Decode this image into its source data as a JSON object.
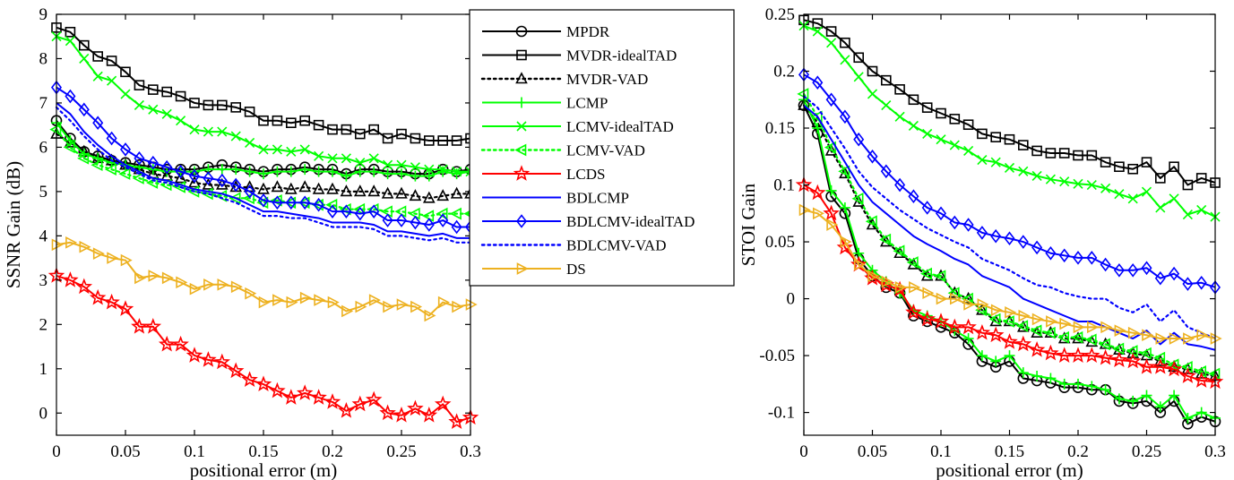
{
  "chart_data": [
    {
      "type": "line",
      "xlabel": "positional error (m)",
      "ylabel": "SSNR Gain (dB)",
      "xlim": [
        0,
        0.3
      ],
      "ylim": [
        -0.5,
        9
      ],
      "xticks": [
        0,
        0.05,
        0.1,
        0.15,
        0.2,
        0.25,
        0.3
      ],
      "xtick_labels": [
        "0",
        "0.05",
        "0.1",
        "0.15",
        "0.2",
        "0.25",
        "0.3"
      ],
      "yticks": [
        0,
        1,
        2,
        3,
        4,
        5,
        6,
        7,
        8,
        9
      ],
      "ytick_labels": [
        "0",
        "1",
        "2",
        "3",
        "4",
        "5",
        "6",
        "7",
        "8",
        "9"
      ],
      "x": [
        0,
        0.01,
        0.02,
        0.03,
        0.04,
        0.05,
        0.06,
        0.07,
        0.08,
        0.09,
        0.1,
        0.11,
        0.12,
        0.13,
        0.14,
        0.15,
        0.16,
        0.17,
        0.18,
        0.19,
        0.2,
        0.21,
        0.22,
        0.23,
        0.24,
        0.25,
        0.26,
        0.27,
        0.28,
        0.29,
        0.3
      ],
      "series": [
        {
          "name": "MPDR",
          "values": [
            6.6,
            6.2,
            5.9,
            5.8,
            5.7,
            5.65,
            5.6,
            5.55,
            5.5,
            5.5,
            5.5,
            5.55,
            5.6,
            5.55,
            5.5,
            5.45,
            5.5,
            5.5,
            5.55,
            5.5,
            5.5,
            5.4,
            5.5,
            5.5,
            5.45,
            5.45,
            5.4,
            5.4,
            5.5,
            5.45,
            5.5
          ]
        },
        {
          "name": "MVDR-idealTAD",
          "values": [
            8.7,
            8.6,
            8.3,
            8.05,
            7.95,
            7.7,
            7.4,
            7.3,
            7.25,
            7.15,
            7.0,
            6.95,
            6.95,
            6.9,
            6.8,
            6.6,
            6.6,
            6.55,
            6.6,
            6.5,
            6.4,
            6.4,
            6.3,
            6.4,
            6.2,
            6.3,
            6.2,
            6.15,
            6.15,
            6.15,
            6.2
          ]
        },
        {
          "name": "MVDR-VAD",
          "values": [
            6.3,
            6.1,
            5.9,
            5.75,
            5.7,
            5.6,
            5.5,
            5.4,
            5.35,
            5.3,
            5.2,
            5.15,
            5.15,
            5.1,
            5.1,
            5.05,
            5.1,
            5.05,
            5.1,
            5.05,
            5.05,
            5.0,
            5.0,
            5.0,
            4.95,
            4.95,
            4.9,
            4.85,
            4.9,
            4.95,
            4.95
          ]
        },
        {
          "name": "LCMP",
          "values": [
            6.55,
            6.15,
            5.85,
            5.75,
            5.65,
            5.6,
            5.55,
            5.5,
            5.45,
            5.45,
            5.45,
            5.5,
            5.5,
            5.5,
            5.45,
            5.4,
            5.45,
            5.45,
            5.5,
            5.45,
            5.45,
            5.35,
            5.45,
            5.45,
            5.4,
            5.4,
            5.35,
            5.35,
            5.45,
            5.4,
            5.45
          ]
        },
        {
          "name": "LCMV-idealTAD",
          "values": [
            8.5,
            8.4,
            8.0,
            7.6,
            7.5,
            7.2,
            6.95,
            6.85,
            6.75,
            6.6,
            6.4,
            6.35,
            6.35,
            6.25,
            6.1,
            5.95,
            5.95,
            5.9,
            5.95,
            5.8,
            5.75,
            5.75,
            5.65,
            5.75,
            5.6,
            5.6,
            5.55,
            5.5,
            5.5,
            5.45,
            5.45
          ]
        },
        {
          "name": "LCMV-VAD",
          "values": [
            6.4,
            6.0,
            5.75,
            5.6,
            5.5,
            5.4,
            5.3,
            5.2,
            5.15,
            5.1,
            5.0,
            4.95,
            4.9,
            4.85,
            4.85,
            4.75,
            4.8,
            4.75,
            4.75,
            4.7,
            4.7,
            4.6,
            4.6,
            4.6,
            4.55,
            4.55,
            4.5,
            4.45,
            4.5,
            4.5,
            4.5
          ]
        },
        {
          "name": "LCDS",
          "values": [
            3.1,
            3.0,
            2.85,
            2.6,
            2.5,
            2.35,
            1.95,
            1.95,
            1.55,
            1.55,
            1.3,
            1.2,
            1.15,
            0.95,
            0.75,
            0.65,
            0.5,
            0.35,
            0.45,
            0.35,
            0.25,
            0.05,
            0.2,
            0.3,
            0.0,
            -0.05,
            0.1,
            -0.05,
            0.2,
            -0.2,
            -0.1
          ]
        },
        {
          "name": "BDLCMP",
          "values": [
            7.0,
            6.75,
            6.35,
            6.05,
            5.8,
            5.6,
            5.45,
            5.3,
            5.25,
            5.15,
            5.05,
            5.0,
            4.95,
            4.85,
            4.7,
            4.55,
            4.55,
            4.5,
            4.45,
            4.4,
            4.3,
            4.3,
            4.3,
            4.25,
            4.1,
            4.1,
            4.05,
            4.0,
            4.05,
            3.95,
            3.95
          ]
        },
        {
          "name": "BDLCMV-idealTAD",
          "values": [
            7.35,
            7.15,
            6.85,
            6.55,
            6.2,
            5.95,
            5.75,
            5.65,
            5.55,
            5.45,
            5.35,
            5.3,
            5.25,
            5.15,
            5.0,
            4.8,
            4.75,
            4.75,
            4.75,
            4.7,
            4.55,
            4.55,
            4.5,
            4.55,
            4.35,
            4.35,
            4.3,
            4.25,
            4.35,
            4.2,
            4.2
          ]
        },
        {
          "name": "BDLCMV-VAD",
          "values": [
            6.9,
            6.6,
            6.25,
            5.95,
            5.7,
            5.55,
            5.4,
            5.25,
            5.2,
            5.1,
            5.0,
            4.95,
            4.85,
            4.75,
            4.6,
            4.45,
            4.45,
            4.4,
            4.4,
            4.3,
            4.2,
            4.2,
            4.2,
            4.15,
            4.0,
            4.0,
            3.95,
            3.9,
            3.95,
            3.85,
            3.85
          ]
        },
        {
          "name": "DS",
          "values": [
            3.8,
            3.85,
            3.75,
            3.6,
            3.5,
            3.45,
            3.05,
            3.1,
            3.05,
            2.95,
            2.8,
            2.9,
            2.9,
            2.85,
            2.7,
            2.5,
            2.55,
            2.5,
            2.6,
            2.55,
            2.5,
            2.3,
            2.4,
            2.55,
            2.4,
            2.45,
            2.4,
            2.2,
            2.5,
            2.4,
            2.45
          ]
        }
      ]
    },
    {
      "type": "line",
      "xlabel": "positional error (m)",
      "ylabel": "STOI Gain",
      "xlim": [
        0,
        0.3
      ],
      "ylim": [
        -0.12,
        0.25
      ],
      "xticks": [
        0,
        0.05,
        0.1,
        0.15,
        0.2,
        0.25,
        0.3
      ],
      "xtick_labels": [
        "0",
        "0.05",
        "0.1",
        "0.15",
        "0.2",
        "0.25",
        "0.3"
      ],
      "yticks": [
        -0.1,
        -0.05,
        0,
        0.05,
        0.1,
        0.15,
        0.2,
        0.25
      ],
      "ytick_labels": [
        "-0.1",
        "-0.05",
        "0",
        "0.05",
        "0.1",
        "0.15",
        "0.2",
        "0.25"
      ],
      "x": [
        0,
        0.01,
        0.02,
        0.03,
        0.04,
        0.05,
        0.06,
        0.07,
        0.08,
        0.09,
        0.1,
        0.11,
        0.12,
        0.13,
        0.14,
        0.15,
        0.16,
        0.17,
        0.18,
        0.19,
        0.2,
        0.21,
        0.22,
        0.23,
        0.24,
        0.25,
        0.26,
        0.27,
        0.28,
        0.29,
        0.3
      ],
      "series": [
        {
          "name": "MPDR",
          "values": [
            0.17,
            0.145,
            0.09,
            0.075,
            0.035,
            0.02,
            0.01,
            0.005,
            -0.015,
            -0.02,
            -0.025,
            -0.03,
            -0.04,
            -0.055,
            -0.06,
            -0.055,
            -0.07,
            -0.072,
            -0.074,
            -0.078,
            -0.078,
            -0.08,
            -0.08,
            -0.09,
            -0.092,
            -0.09,
            -0.1,
            -0.09,
            -0.11,
            -0.104,
            -0.108
          ]
        },
        {
          "name": "MVDR-idealTAD",
          "values": [
            0.245,
            0.242,
            0.235,
            0.225,
            0.212,
            0.2,
            0.192,
            0.184,
            0.175,
            0.168,
            0.163,
            0.158,
            0.153,
            0.145,
            0.142,
            0.14,
            0.135,
            0.13,
            0.128,
            0.128,
            0.126,
            0.126,
            0.12,
            0.116,
            0.114,
            0.12,
            0.106,
            0.116,
            0.1,
            0.106,
            0.102
          ]
        },
        {
          "name": "MVDR-VAD",
          "values": [
            0.17,
            0.155,
            0.13,
            0.11,
            0.085,
            0.065,
            0.05,
            0.04,
            0.03,
            0.02,
            0.02,
            0.005,
            0.0,
            -0.01,
            -0.02,
            -0.02,
            -0.025,
            -0.03,
            -0.03,
            -0.035,
            -0.035,
            -0.038,
            -0.04,
            -0.045,
            -0.048,
            -0.05,
            -0.055,
            -0.06,
            -0.062,
            -0.066,
            -0.068
          ]
        },
        {
          "name": "LCMP",
          "values": [
            0.175,
            0.15,
            0.095,
            0.08,
            0.04,
            0.025,
            0.015,
            0.005,
            -0.01,
            -0.015,
            -0.02,
            -0.028,
            -0.035,
            -0.05,
            -0.055,
            -0.05,
            -0.065,
            -0.068,
            -0.07,
            -0.075,
            -0.075,
            -0.077,
            -0.08,
            -0.088,
            -0.09,
            -0.085,
            -0.095,
            -0.085,
            -0.105,
            -0.1,
            -0.105
          ]
        },
        {
          "name": "LCMV-idealTAD",
          "values": [
            0.24,
            0.235,
            0.225,
            0.21,
            0.195,
            0.18,
            0.17,
            0.16,
            0.152,
            0.145,
            0.14,
            0.135,
            0.13,
            0.122,
            0.12,
            0.115,
            0.112,
            0.108,
            0.105,
            0.103,
            0.101,
            0.1,
            0.097,
            0.092,
            0.088,
            0.094,
            0.08,
            0.088,
            0.074,
            0.078,
            0.072
          ]
        },
        {
          "name": "LCMV-VAD",
          "values": [
            0.18,
            0.16,
            0.133,
            0.112,
            0.088,
            0.068,
            0.052,
            0.042,
            0.032,
            0.022,
            0.02,
            0.005,
            0.0,
            -0.01,
            -0.018,
            -0.02,
            -0.024,
            -0.028,
            -0.03,
            -0.034,
            -0.034,
            -0.036,
            -0.04,
            -0.044,
            -0.046,
            -0.048,
            -0.052,
            -0.058,
            -0.06,
            -0.064,
            -0.066
          ]
        },
        {
          "name": "LCDS",
          "values": [
            0.1,
            0.093,
            0.075,
            0.045,
            0.03,
            0.018,
            0.012,
            0.008,
            -0.012,
            -0.018,
            -0.02,
            -0.025,
            -0.025,
            -0.03,
            -0.032,
            -0.038,
            -0.04,
            -0.045,
            -0.048,
            -0.05,
            -0.05,
            -0.05,
            -0.052,
            -0.054,
            -0.055,
            -0.06,
            -0.06,
            -0.062,
            -0.068,
            -0.072,
            -0.073
          ]
        },
        {
          "name": "BDLCMP",
          "values": [
            0.17,
            0.16,
            0.14,
            0.12,
            0.1,
            0.085,
            0.075,
            0.065,
            0.055,
            0.048,
            0.042,
            0.035,
            0.03,
            0.02,
            0.015,
            0.01,
            0.0,
            -0.005,
            -0.01,
            -0.015,
            -0.02,
            -0.02,
            -0.025,
            -0.03,
            -0.035,
            -0.028,
            -0.04,
            -0.03,
            -0.04,
            -0.042,
            -0.045
          ]
        },
        {
          "name": "BDLCMV-idealTAD",
          "values": [
            0.197,
            0.19,
            0.175,
            0.16,
            0.14,
            0.125,
            0.112,
            0.1,
            0.09,
            0.08,
            0.075,
            0.067,
            0.065,
            0.058,
            0.055,
            0.053,
            0.05,
            0.045,
            0.04,
            0.038,
            0.036,
            0.036,
            0.03,
            0.025,
            0.025,
            0.027,
            0.018,
            0.022,
            0.013,
            0.014,
            0.01
          ]
        },
        {
          "name": "BDLCMV-VAD",
          "values": [
            0.178,
            0.168,
            0.15,
            0.132,
            0.112,
            0.098,
            0.088,
            0.078,
            0.07,
            0.062,
            0.056,
            0.05,
            0.045,
            0.035,
            0.03,
            0.025,
            0.018,
            0.012,
            0.01,
            0.005,
            0.002,
            0.0,
            0.0,
            -0.008,
            -0.012,
            -0.005,
            -0.02,
            -0.01,
            -0.025,
            -0.03,
            -0.035
          ]
        },
        {
          "name": "DS",
          "values": [
            0.078,
            0.075,
            0.065,
            0.05,
            0.03,
            0.02,
            0.015,
            0.01,
            0.01,
            0.005,
            0.0,
            0.0,
            -0.005,
            -0.005,
            -0.01,
            -0.012,
            -0.015,
            -0.018,
            -0.02,
            -0.022,
            -0.025,
            -0.025,
            -0.025,
            -0.028,
            -0.03,
            -0.032,
            -0.035,
            -0.035,
            -0.035,
            -0.032,
            -0.035
          ]
        }
      ]
    }
  ],
  "legend": {
    "items": [
      {
        "label": "MPDR",
        "color": "#000000",
        "dash": "solid",
        "marker": "circle"
      },
      {
        "label": "MVDR-idealTAD",
        "color": "#000000",
        "dash": "solid",
        "marker": "square"
      },
      {
        "label": "MVDR-VAD",
        "color": "#000000",
        "dash": "dotted",
        "marker": "triangle-up"
      },
      {
        "label": "LCMP",
        "color": "#00ff00",
        "dash": "solid",
        "marker": "plus"
      },
      {
        "label": "LCMV-idealTAD",
        "color": "#00ff00",
        "dash": "solid",
        "marker": "x"
      },
      {
        "label": "LCMV-VAD",
        "color": "#00ff00",
        "dash": "dotted",
        "marker": "triangle-left"
      },
      {
        "label": "LCDS",
        "color": "#ff0000",
        "dash": "solid",
        "marker": "star"
      },
      {
        "label": "BDLCMP",
        "color": "#0000ff",
        "dash": "solid",
        "marker": "none"
      },
      {
        "label": "BDLCMV-idealTAD",
        "color": "#0000ff",
        "dash": "solid",
        "marker": "diamond"
      },
      {
        "label": "BDLCMV-VAD",
        "color": "#0000ff",
        "dash": "dotted",
        "marker": "none"
      },
      {
        "label": "DS",
        "color": "#edb120",
        "dash": "solid",
        "marker": "triangle-right"
      }
    ]
  }
}
